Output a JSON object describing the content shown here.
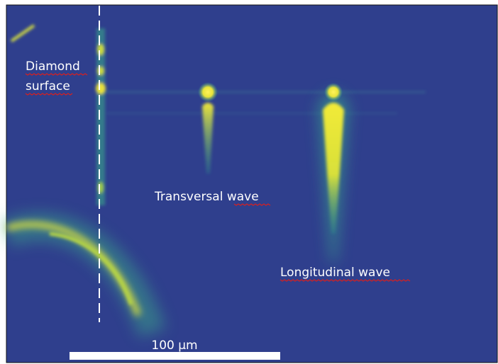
{
  "labels": {
    "diamond_surface": [
      "Diamond",
      "surface"
    ],
    "transversal_wave": "Transversal wave",
    "longitudinal_wave": "Longitudinal wave"
  },
  "scale_bar": {
    "label": "100 µm"
  }
}
